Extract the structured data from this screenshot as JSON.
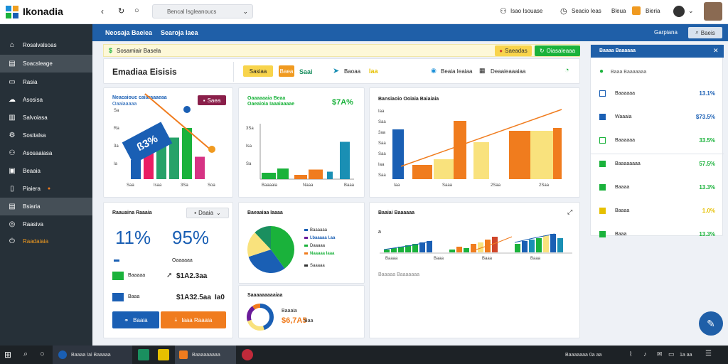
{
  "app": {
    "title": "Ikonadia"
  },
  "topbar": {
    "address": "Bencal Isgleanoucs",
    "link1": "Isao Isouase",
    "link2": "Seacio Ieas",
    "link3": "Bleua",
    "link4": "Bieria"
  },
  "sidebar": {
    "items": [
      {
        "label": "Rosalvalsoas"
      },
      {
        "label": "Soacsleage"
      },
      {
        "label": "Rasia"
      },
      {
        "label": "Asosisa"
      },
      {
        "label": "Salvoiasa"
      },
      {
        "label": "Sositalsa"
      },
      {
        "label": "Asosaaiasa"
      },
      {
        "label": "Beaaia"
      },
      {
        "label": "Piaiera"
      },
      {
        "label": "Bsiaria"
      },
      {
        "label": "Raasiva"
      },
      {
        "label": "Raadaiaia"
      }
    ]
  },
  "navbar": {
    "tab1": "Neosaja Baeiea",
    "tab2": "Searoja Iaea",
    "right_label": "Garpiana",
    "right_button": "Baeis"
  },
  "info_bar": {
    "text": "Sosamiair Basela",
    "btn_yellow": "Saeadas",
    "btn_green": "Oiasaleaaa"
  },
  "summary_bar": {
    "title": "Emadiaa Eisisis",
    "badge1": "Sasiaa",
    "badge2": "Baea",
    "badge3": "Saai",
    "item1_label": "Baoaa",
    "item1_value": "Iaa",
    "item2": "Beaia Ieaiaa",
    "item3": "Deaaieaaaiaa"
  },
  "card1": {
    "title": "Neacaiouc caiaraaaeaa",
    "subtitle": "Oaaiaaaaa",
    "badge": "Saea",
    "banner": "ß3%",
    "ticks": [
      "Saa",
      "Isaa",
      "3Sa",
      "Soa"
    ],
    "ylabels": [
      "Sa",
      "Ra",
      "3a",
      "Ia"
    ],
    "chart_data": {
      "type": "bar",
      "categories": [
        "1",
        "2",
        "3",
        "4",
        "5",
        "6"
      ],
      "values": [
        30,
        45,
        55,
        65,
        80,
        35
      ],
      "colors": [
        "#1a5fb4",
        "#e91e63",
        "#26a269",
        "#26a269",
        "#1ab23b",
        "#d63384"
      ]
    }
  },
  "card2": {
    "title": "Oaaaaaaia Beaa",
    "subtitle": "Oaeaioia Iaaaiaaaae",
    "value": "$7A%",
    "ticks": [
      "Baaaaia",
      "Naaa",
      "Baaa"
    ],
    "ylabels": [
      "3Sa",
      "Isa",
      "Sa"
    ],
    "chart_data": {
      "type": "bar",
      "series": [
        {
          "values": [
            12,
            20,
            8,
            18,
            14,
            70
          ]
        }
      ],
      "colors": [
        "#1ab23b",
        "#1ab23b",
        "#f07c1e",
        "#f07c1e",
        "#1a8fb4",
        "#1a8fb4"
      ]
    }
  },
  "card3": {
    "title": "Bansiaoio Ooiaia Baiaiaia",
    "ylabels": [
      "Iaa",
      "Saa",
      "3aa",
      "Saa",
      "Saa",
      "Iaa",
      "Saa"
    ],
    "ticks": [
      "Iaa",
      "Saaa",
      "2Saa",
      "2Saa"
    ],
    "chart_data": {
      "type": "bar",
      "values": [
        70,
        20,
        28,
        52,
        82,
        68,
        68,
        72
      ],
      "colors": [
        "#1a5fb4",
        "#f07c1e",
        "#f9e27d",
        "#f9e27d",
        "#f07c1e",
        "#f9e27d",
        "#f07c1e",
        "#f07c1e"
      ]
    }
  },
  "metrics_card": {
    "title": "Raauaina Raaaia",
    "dropdown": "Daaia",
    "big1": "11%",
    "big2": "95%",
    "big2_label": "Oaaaaaa",
    "row1_label": "Baaaaa",
    "row1_value": "$1A2.3aa",
    "row2_label": "Baaa",
    "row2_value": "$1A32.5aa",
    "row2_extra": "Ia0",
    "btn_blue": "Baaia",
    "btn_orange": "Iaaa Raaaia"
  },
  "pie_card": {
    "title": "Baeaaiaa Iaaaa",
    "legend": [
      "Baaaaaa",
      "I.baaaaa I.aa",
      "Daaaaa",
      "Naaaaa Iaaa"
    ],
    "bottom_legend": "Saaaaa",
    "chart_data": {
      "type": "pie",
      "values": [
        40,
        30,
        18,
        12
      ],
      "colors": [
        "#1ab23b",
        "#1a5fb4",
        "#f9e27d",
        "#1a8f5f"
      ]
    }
  },
  "donut_card": {
    "title": "Saaaaaaaaaiaa",
    "label": "Baaaia",
    "value": "$6,7A5",
    "value_sub": "Baa",
    "chart_data": {
      "type": "pie",
      "values": [
        45,
        25,
        20,
        10
      ],
      "colors": [
        "#1a5fb4",
        "#f9e27d",
        "#6a1b9a",
        "#f07c1e"
      ]
    }
  },
  "activity_card": {
    "title": "Baaiai Baaaaaa",
    "caption": "Baaaaa Baaaaaaa",
    "ylabel": "a",
    "ticks": [
      "Baaaa",
      "Baaa",
      "Baaa",
      "Baaa"
    ]
  },
  "right_panel": {
    "title": "Baaaa Baaaaaa",
    "subtitle": "Baaa Baaaaaaa",
    "rows": [
      {
        "label": "Baaaaaa",
        "value": "13.1%",
        "color": "#1a5fb4"
      },
      {
        "label": "Waaaia",
        "value": "$73.5%",
        "color": "#1a5fb4"
      },
      {
        "label": "Baaaaaa",
        "value": "33.5%",
        "color": "#1ab23b"
      },
      {
        "label": "Baaaaaaaa",
        "value": "57.5%",
        "color": "#1ab23b"
      },
      {
        "label": "Baaaa",
        "value": "13.3%",
        "color": "#1ab23b"
      },
      {
        "label": "Baaaa",
        "value": "1.0%",
        "color": "#e6c000"
      },
      {
        "label": "Baaa",
        "value": "13.3%",
        "color": "#1ab23b"
      }
    ]
  },
  "taskbar": {
    "item1": "Baaaa Iai Baaaaa",
    "item2": "Baaaaaaaaa",
    "clock": "Baaaaaaa 0a aa",
    "time": "1a aa"
  }
}
